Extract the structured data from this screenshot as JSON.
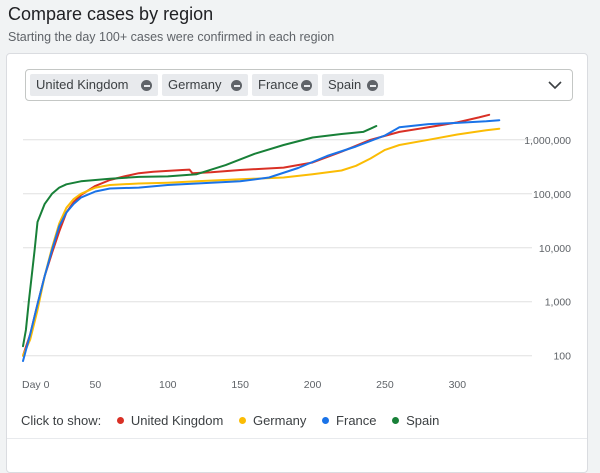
{
  "header": {
    "title": "Compare cases by region",
    "subtitle": "Starting the day 100+ cases were confirmed in each region"
  },
  "selector": {
    "chips": [
      "United Kingdom",
      "Germany",
      "France",
      "Spain"
    ],
    "dropdown_icon": "chevron-down-icon"
  },
  "legend": {
    "prefix": "Click to show:",
    "items": [
      "United Kingdom",
      "Germany",
      "France",
      "Spain"
    ]
  },
  "chart_data": {
    "type": "line",
    "xlabel": "",
    "ylabel": "",
    "xlim": [
      0,
      335
    ],
    "ylim": [
      50,
      3000000
    ],
    "y_scale": "log",
    "grid": "horizontal",
    "legend_position": "bottom-left",
    "x_ticks": [
      {
        "value": 0,
        "label": "Day 0"
      },
      {
        "value": 50,
        "label": "50"
      },
      {
        "value": 100,
        "label": "100"
      },
      {
        "value": 150,
        "label": "150"
      },
      {
        "value": 200,
        "label": "200"
      },
      {
        "value": 250,
        "label": "250"
      },
      {
        "value": 300,
        "label": "300"
      }
    ],
    "y_ticks": [
      {
        "value": 100,
        "label": "100"
      },
      {
        "value": 1000,
        "label": "1,000"
      },
      {
        "value": 10000,
        "label": "10,000"
      },
      {
        "value": 100000,
        "label": "100,000"
      },
      {
        "value": 1000000,
        "label": "1,000,000"
      }
    ],
    "series": [
      {
        "name": "United Kingdom",
        "color": "#d93025",
        "points": [
          [
            0,
            100
          ],
          [
            5,
            250
          ],
          [
            10,
            900
          ],
          [
            15,
            3000
          ],
          [
            20,
            8000
          ],
          [
            25,
            20000
          ],
          [
            30,
            45000
          ],
          [
            35,
            70000
          ],
          [
            40,
            95000
          ],
          [
            50,
            140000
          ],
          [
            60,
            180000
          ],
          [
            70,
            210000
          ],
          [
            80,
            240000
          ],
          [
            90,
            255000
          ],
          [
            100,
            265000
          ],
          [
            110,
            275000
          ],
          [
            115,
            280000
          ],
          [
            117,
            240000
          ],
          [
            130,
            250000
          ],
          [
            150,
            275000
          ],
          [
            180,
            305000
          ],
          [
            200,
            380000
          ],
          [
            220,
            600000
          ],
          [
            240,
            1000000
          ],
          [
            260,
            1400000
          ],
          [
            280,
            1700000
          ],
          [
            300,
            2100000
          ],
          [
            315,
            2600000
          ],
          [
            322,
            2900000
          ]
        ]
      },
      {
        "name": "Germany",
        "color": "#fbbc04",
        "points": [
          [
            0,
            100
          ],
          [
            5,
            200
          ],
          [
            10,
            700
          ],
          [
            15,
            3000
          ],
          [
            20,
            10000
          ],
          [
            25,
            28000
          ],
          [
            30,
            55000
          ],
          [
            35,
            80000
          ],
          [
            40,
            100000
          ],
          [
            50,
            130000
          ],
          [
            60,
            145000
          ],
          [
            80,
            155000
          ],
          [
            100,
            160000
          ],
          [
            120,
            170000
          ],
          [
            150,
            185000
          ],
          [
            180,
            200000
          ],
          [
            200,
            230000
          ],
          [
            220,
            270000
          ],
          [
            230,
            330000
          ],
          [
            240,
            450000
          ],
          [
            250,
            650000
          ],
          [
            260,
            800000
          ],
          [
            280,
            1000000
          ],
          [
            300,
            1250000
          ],
          [
            320,
            1500000
          ],
          [
            329,
            1600000
          ]
        ]
      },
      {
        "name": "France",
        "color": "#1a73e8",
        "points": [
          [
            0,
            80
          ],
          [
            5,
            250
          ],
          [
            10,
            900
          ],
          [
            15,
            3000
          ],
          [
            20,
            9000
          ],
          [
            25,
            25000
          ],
          [
            30,
            45000
          ],
          [
            35,
            65000
          ],
          [
            40,
            85000
          ],
          [
            50,
            110000
          ],
          [
            60,
            125000
          ],
          [
            80,
            130000
          ],
          [
            100,
            145000
          ],
          [
            130,
            160000
          ],
          [
            150,
            170000
          ],
          [
            170,
            200000
          ],
          [
            190,
            300000
          ],
          [
            210,
            500000
          ],
          [
            230,
            750000
          ],
          [
            250,
            1200000
          ],
          [
            260,
            1700000
          ],
          [
            280,
            1950000
          ],
          [
            300,
            2050000
          ],
          [
            320,
            2200000
          ],
          [
            329,
            2300000
          ]
        ]
      },
      {
        "name": "Spain",
        "color": "#188038",
        "points": [
          [
            0,
            150
          ],
          [
            2,
            300
          ],
          [
            4,
            1000
          ],
          [
            6,
            3000
          ],
          [
            8,
            9000
          ],
          [
            10,
            30000
          ],
          [
            15,
            65000
          ],
          [
            20,
            100000
          ],
          [
            25,
            130000
          ],
          [
            30,
            150000
          ],
          [
            40,
            170000
          ],
          [
            60,
            190000
          ],
          [
            80,
            205000
          ],
          [
            100,
            210000
          ],
          [
            120,
            230000
          ],
          [
            140,
            340000
          ],
          [
            160,
            550000
          ],
          [
            180,
            800000
          ],
          [
            200,
            1100000
          ],
          [
            220,
            1280000
          ],
          [
            235,
            1400000
          ],
          [
            240,
            1600000
          ],
          [
            244,
            1800000
          ]
        ]
      }
    ]
  }
}
